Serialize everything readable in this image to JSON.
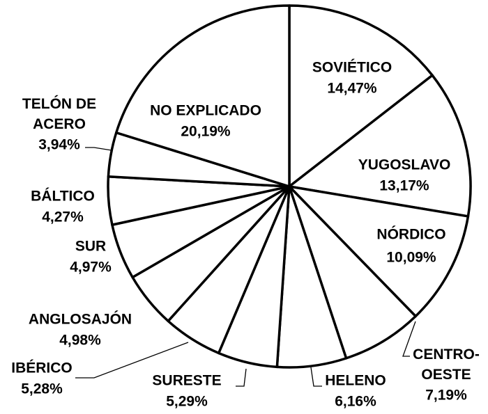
{
  "chart_data": {
    "type": "pie",
    "categories": [
      "SOVIÉTICO",
      "YUGOSLAVO",
      "NÓRDICO",
      "CENTRO-OESTE",
      "HELENO",
      "SURESTE",
      "IBÉRICO",
      "ANGLOSAJÓN",
      "SUR",
      "BÁLTICO",
      "TELÓN DE ACERO",
      "NO EXPLICADO"
    ],
    "values": [
      14.47,
      13.17,
      10.09,
      7.19,
      6.16,
      5.29,
      5.28,
      4.98,
      4.97,
      4.27,
      3.94,
      20.19
    ],
    "value_labels": [
      "14,47%",
      "13,17%",
      "10,09%",
      "7,19%",
      "6,16%",
      "5,29%",
      "5,28%",
      "4,98%",
      "4,97%",
      "4,27%",
      "3,94%",
      "20,19%"
    ],
    "color": "#ffffff"
  }
}
